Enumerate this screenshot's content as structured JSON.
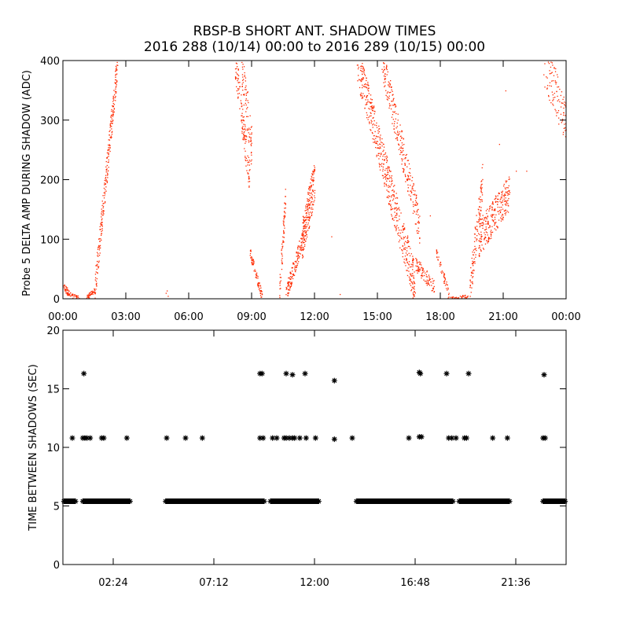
{
  "title_line1": "RBSP-B SHORT ANT. SHADOW TIMES",
  "title_line2": "2016 288 (10/14) 00:00 to 2016 289 (10/15) 00:00",
  "colors": {
    "top_points": "#ff2a00",
    "bottom_points": "#000000",
    "axes": "#000000"
  },
  "chart_data": [
    {
      "type": "scatter",
      "ylabel": "Probe 5 DELTA AMP DURING SHADOW (ADC)",
      "ylim": [
        0,
        400
      ],
      "xlim": [
        0,
        24
      ],
      "yticks": [
        0,
        100,
        200,
        300,
        400
      ],
      "xticks": [
        0,
        3,
        6,
        9,
        12,
        15,
        18,
        21,
        24
      ],
      "xtick_labels": [
        "00:00",
        "03:00",
        "06:00",
        "09:00",
        "12:00",
        "15:00",
        "18:00",
        "21:00",
        "00:00"
      ],
      "segments": [
        {
          "x0": 0.0,
          "x1": 0.3,
          "y0": 22,
          "y1": 8,
          "n": 40,
          "spread": 6
        },
        {
          "x0": 0.3,
          "x1": 0.8,
          "y0": 8,
          "y1": 0,
          "n": 30,
          "spread": 4
        },
        {
          "x0": 1.1,
          "x1": 1.5,
          "y0": 2,
          "y1": 15,
          "n": 40,
          "spread": 4
        },
        {
          "x0": 1.5,
          "x1": 2.6,
          "y0": 15,
          "y1": 400,
          "n": 260,
          "spread": 25
        },
        {
          "x0": 8.2,
          "x1": 8.9,
          "y0": 400,
          "y1": 200,
          "n": 130,
          "spread": 30
        },
        {
          "x0": 8.5,
          "x1": 9.0,
          "y0": 400,
          "y1": 250,
          "n": 80,
          "spread": 40
        },
        {
          "x0": 8.9,
          "x1": 9.5,
          "y0": 80,
          "y1": 2,
          "n": 80,
          "spread": 8
        },
        {
          "x0": 10.3,
          "x1": 10.6,
          "y0": 5,
          "y1": 170,
          "n": 70,
          "spread": 25
        },
        {
          "x0": 10.6,
          "x1": 11.4,
          "y0": 5,
          "y1": 100,
          "n": 140,
          "spread": 15
        },
        {
          "x0": 11.4,
          "x1": 12.0,
          "y0": 100,
          "y1": 200,
          "n": 220,
          "spread": 35
        },
        {
          "x0": 14.0,
          "x1": 16.8,
          "y0": 400,
          "y1": 20,
          "n": 520,
          "spread": 35
        },
        {
          "x0": 15.2,
          "x1": 17.0,
          "y0": 400,
          "y1": 120,
          "n": 260,
          "spread": 30
        },
        {
          "x0": 16.8,
          "x1": 17.7,
          "y0": 60,
          "y1": 20,
          "n": 90,
          "spread": 12
        },
        {
          "x0": 17.8,
          "x1": 18.4,
          "y0": 80,
          "y1": 5,
          "n": 50,
          "spread": 10
        },
        {
          "x0": 18.4,
          "x1": 19.3,
          "y0": 0,
          "y1": 5,
          "n": 50,
          "spread": 3
        },
        {
          "x0": 19.4,
          "x1": 20.0,
          "y0": 20,
          "y1": 200,
          "n": 110,
          "spread": 30
        },
        {
          "x0": 19.8,
          "x1": 21.3,
          "y0": 100,
          "y1": 180,
          "n": 260,
          "spread": 30
        },
        {
          "x0": 22.9,
          "x1": 24.0,
          "y0": 400,
          "y1": 300,
          "n": 110,
          "spread": 40
        }
      ],
      "isolated_points": [
        [
          4.9,
          10
        ],
        [
          4.95,
          14
        ],
        [
          5.0,
          5
        ],
        [
          12.8,
          105
        ],
        [
          13.2,
          8
        ],
        [
          21.1,
          350
        ],
        [
          21.6,
          215
        ],
        [
          22.1,
          215
        ],
        [
          20.8,
          260
        ],
        [
          14.3,
          390
        ],
        [
          17.5,
          140
        ]
      ]
    },
    {
      "type": "scatter",
      "ylabel": "TIME BETWEEN SHADOWS (SEC)",
      "ylim": [
        0,
        20
      ],
      "xlim": [
        0,
        24
      ],
      "yticks": [
        0,
        5,
        10,
        15,
        20
      ],
      "xticks": [
        2.4,
        7.2,
        12.0,
        16.8,
        21.6
      ],
      "xtick_labels": [
        "02:24",
        "07:12",
        "12:00",
        "16:48",
        "21:36"
      ],
      "bands": [
        {
          "x0": 0.05,
          "x1": 0.6,
          "y": 5.4
        },
        {
          "x0": 0.95,
          "x1": 3.2,
          "y": 5.4
        },
        {
          "x0": 4.9,
          "x1": 9.6,
          "y": 5.4
        },
        {
          "x0": 9.9,
          "x1": 12.2,
          "y": 5.4
        },
        {
          "x0": 14.0,
          "x1": 18.6,
          "y": 5.4
        },
        {
          "x0": 18.9,
          "x1": 21.3,
          "y": 5.4
        },
        {
          "x0": 22.9,
          "x1": 23.95,
          "y": 5.4
        }
      ],
      "points": [
        [
          0.45,
          10.8
        ],
        [
          0.95,
          10.8
        ],
        [
          1.05,
          10.8
        ],
        [
          1.15,
          10.8
        ],
        [
          1.3,
          10.8
        ],
        [
          1.85,
          10.8
        ],
        [
          1.95,
          10.8
        ],
        [
          3.05,
          10.8
        ],
        [
          4.95,
          10.8
        ],
        [
          5.85,
          10.8
        ],
        [
          6.65,
          10.8
        ],
        [
          9.4,
          10.8
        ],
        [
          9.55,
          10.8
        ],
        [
          10.0,
          10.8
        ],
        [
          10.2,
          10.8
        ],
        [
          10.55,
          10.8
        ],
        [
          10.65,
          10.8
        ],
        [
          10.8,
          10.8
        ],
        [
          10.95,
          10.8
        ],
        [
          11.05,
          10.8
        ],
        [
          11.3,
          10.8
        ],
        [
          11.6,
          10.8
        ],
        [
          12.05,
          10.8
        ],
        [
          12.95,
          10.7
        ],
        [
          13.8,
          10.8
        ],
        [
          16.5,
          10.8
        ],
        [
          17.0,
          10.9
        ],
        [
          17.1,
          10.9
        ],
        [
          18.4,
          10.8
        ],
        [
          18.55,
          10.8
        ],
        [
          18.75,
          10.8
        ],
        [
          19.15,
          10.8
        ],
        [
          19.25,
          10.8
        ],
        [
          20.5,
          10.8
        ],
        [
          21.2,
          10.8
        ],
        [
          22.9,
          10.8
        ],
        [
          23.0,
          10.8
        ],
        [
          1.0,
          16.3
        ],
        [
          9.4,
          16.3
        ],
        [
          9.5,
          16.3
        ],
        [
          10.65,
          16.3
        ],
        [
          10.95,
          16.2
        ],
        [
          11.55,
          16.3
        ],
        [
          12.95,
          15.7
        ],
        [
          17.0,
          16.4
        ],
        [
          17.05,
          16.3
        ],
        [
          18.3,
          16.3
        ],
        [
          19.35,
          16.3
        ],
        [
          22.95,
          16.2
        ]
      ]
    }
  ]
}
